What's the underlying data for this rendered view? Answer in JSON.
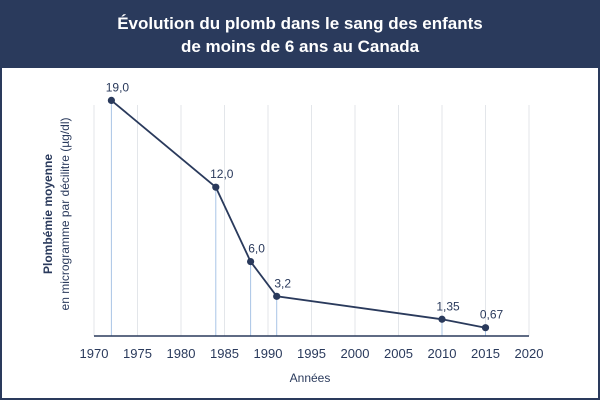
{
  "chart_data": {
    "type": "line",
    "title_line1": "Évolution du plomb dans le sang des enfants",
    "title_line2": "de moins de 6 ans au Canada",
    "xlabel": "Années",
    "ylabel": "Plombémie moyenne",
    "ylabel_sub": "en microgramme par décilitre (µg/dl)",
    "xlim": [
      1970,
      2020
    ],
    "ylim": [
      0,
      20
    ],
    "x_ticks": [
      "1970",
      "1975",
      "1980",
      "1985",
      "1990",
      "1995",
      "2000",
      "2005",
      "2010",
      "2015",
      "2020"
    ],
    "grid": true,
    "series": [
      {
        "x": [
          1972,
          1984,
          1988,
          1991,
          2010,
          2015
        ],
        "y": [
          19.0,
          12.0,
          6.0,
          3.2,
          1.35,
          0.67
        ],
        "labels": [
          "19,0",
          "12,0",
          "6,0",
          "3,2",
          "1,35",
          "0,67"
        ]
      }
    ],
    "colors": {
      "frame": "#2a3a5c",
      "line": "#2a3a5c",
      "grid": "#e3e6ea",
      "drop_line": "#a9c4e6"
    }
  }
}
